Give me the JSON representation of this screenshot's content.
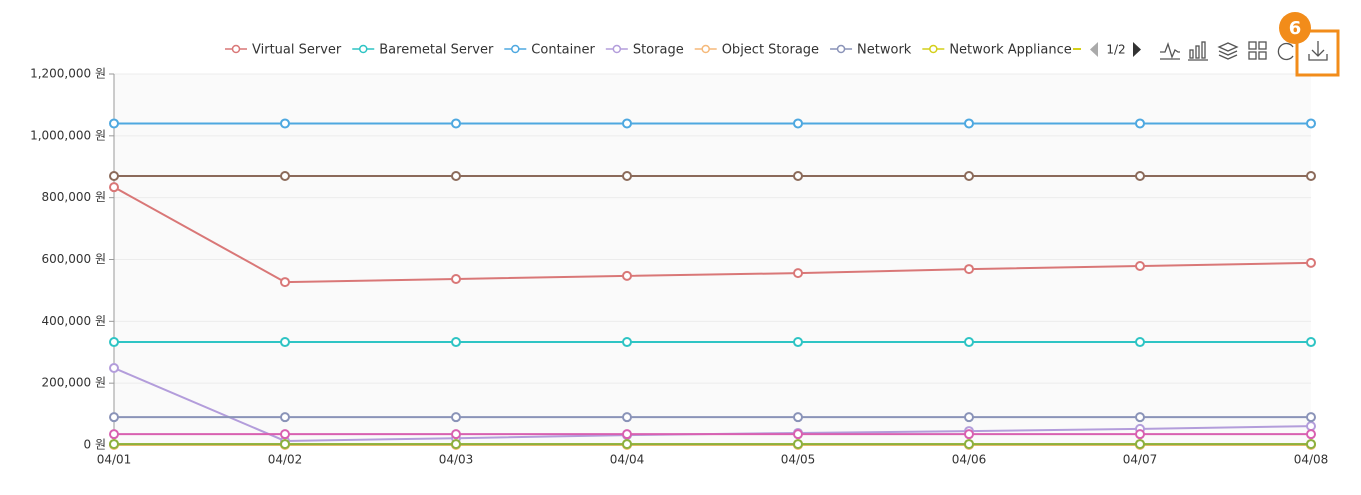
{
  "chart_data": {
    "type": "line",
    "categories": [
      "04/01",
      "04/02",
      "04/03",
      "04/04",
      "04/05",
      "04/06",
      "04/07",
      "04/08"
    ],
    "series": [
      {
        "name": "Virtual Server",
        "color": "#d97777",
        "values": [
          834000,
          527000,
          537000,
          547000,
          556000,
          569000,
          579000,
          589000
        ]
      },
      {
        "name": "Baremetal Server",
        "color": "#2ec4c4",
        "values": [
          333000,
          333000,
          333000,
          333000,
          333000,
          333000,
          333000,
          333000
        ]
      },
      {
        "name": "Container",
        "color": "#4ea8e0",
        "values": [
          1040000,
          1040000,
          1040000,
          1040000,
          1040000,
          1040000,
          1040000,
          1040000
        ]
      },
      {
        "name": "Storage",
        "color": "#b39ddb",
        "values": [
          249000,
          13000,
          22000,
          32000,
          39000,
          45000,
          52000,
          61000
        ]
      },
      {
        "name": "Object Storage",
        "color": "#f5b97a",
        "values": [
          0,
          0,
          0,
          0,
          0,
          0,
          0,
          0
        ]
      },
      {
        "name": "Network",
        "color": "#8a93b8",
        "values": [
          90000,
          90000,
          90000,
          90000,
          90000,
          90000,
          90000,
          90000
        ]
      },
      {
        "name": "Network Appliance",
        "color": "#d4cf1a",
        "values": [
          3000,
          3000,
          3000,
          3000,
          3000,
          3000,
          3000,
          3000
        ]
      },
      {
        "color": "#8b6a5a",
        "values": [
          870000,
          870000,
          870000,
          870000,
          870000,
          870000,
          870000,
          870000
        ]
      },
      {
        "color": "#d860b0",
        "values": [
          35000,
          35000,
          35000,
          35000,
          35000,
          35000,
          35000,
          35000
        ]
      },
      {
        "color": "#8cb040",
        "values": [
          3000,
          3000,
          3000,
          3000,
          3000,
          3000,
          3000,
          3000
        ]
      }
    ],
    "ylim": [
      0,
      1200000
    ],
    "yticks": [
      {
        "value": 0,
        "label": "0 원"
      },
      {
        "value": 200000,
        "label": "200,000 원"
      },
      {
        "value": 400000,
        "label": "400,000 원"
      },
      {
        "value": 600000,
        "label": "600,000 원"
      },
      {
        "value": 800000,
        "label": "800,000 원"
      },
      {
        "value": 1000000,
        "label": "1,000,000 원"
      },
      {
        "value": 1200000,
        "label": "1,200,000 원"
      }
    ],
    "grid": true,
    "legend_page": "1/2"
  },
  "toolbar": {
    "badge": "6"
  }
}
